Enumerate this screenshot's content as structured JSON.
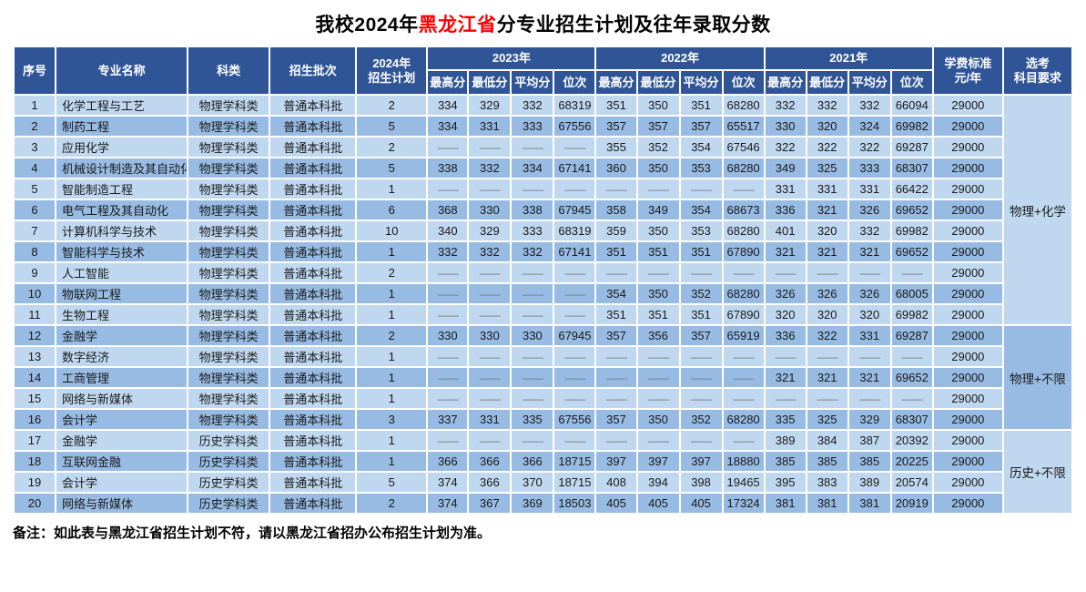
{
  "title": {
    "prefix": "我校2024年",
    "region": "黑龙江省",
    "suffix": "分专业招生计划及往年录取分数"
  },
  "note": "备注：如此表与黑龙江省招生计划不符，请以黑龙江省招办公布招生计划为准。",
  "colors": {
    "header_bg": "#2F5597",
    "row_light": "#BFD7EF",
    "row_dark": "#97BBE3",
    "title_highlight": "#ff0000",
    "dash_gray": "#767676"
  },
  "table": {
    "dash": "——",
    "headers": {
      "index": "序号",
      "major": "专业名称",
      "category": "科类",
      "batch": "招生批次",
      "plan2024": "2024年\n招生计划",
      "years": [
        "2023年",
        "2022年",
        "2021年"
      ],
      "subheaders": [
        "最高分",
        "最低分",
        "平均分",
        "位次"
      ],
      "tuition": "学费标准\n元/年",
      "subjects": "选考\n科目要求"
    },
    "subject_groups": [
      {
        "label": "物理+化学",
        "span": 11,
        "tone": "light"
      },
      {
        "label": "物理+不限",
        "span": 5,
        "tone": "dark"
      },
      {
        "label": "历史+不限",
        "span": 4,
        "tone": "light"
      }
    ],
    "rows": [
      {
        "no": "1",
        "major": "化学工程与工艺",
        "category": "物理学科类",
        "batch": "普通本科批",
        "plan": "2",
        "y2023": [
          "334",
          "329",
          "332",
          "68319"
        ],
        "y2022": [
          "351",
          "350",
          "351",
          "68280"
        ],
        "y2021": [
          "332",
          "332",
          "332",
          "66094"
        ],
        "tuition": "29000"
      },
      {
        "no": "2",
        "major": "制药工程",
        "category": "物理学科类",
        "batch": "普通本科批",
        "plan": "5",
        "y2023": [
          "334",
          "331",
          "333",
          "67556"
        ],
        "y2022": [
          "357",
          "357",
          "357",
          "65517"
        ],
        "y2021": [
          "330",
          "320",
          "324",
          "69982"
        ],
        "tuition": "29000"
      },
      {
        "no": "3",
        "major": "应用化学",
        "category": "物理学科类",
        "batch": "普通本科批",
        "plan": "2",
        "y2023": [
          "——",
          "——",
          "——",
          "——"
        ],
        "y2022": [
          "355",
          "352",
          "354",
          "67546"
        ],
        "y2021": [
          "322",
          "322",
          "322",
          "69287"
        ],
        "tuition": "29000"
      },
      {
        "no": "4",
        "major": "机械设计制造及其自动化",
        "category": "物理学科类",
        "batch": "普通本科批",
        "plan": "5",
        "y2023": [
          "338",
          "332",
          "334",
          "67141"
        ],
        "y2022": [
          "360",
          "350",
          "353",
          "68280"
        ],
        "y2021": [
          "349",
          "325",
          "333",
          "68307"
        ],
        "tuition": "29000"
      },
      {
        "no": "5",
        "major": "智能制造工程",
        "category": "物理学科类",
        "batch": "普通本科批",
        "plan": "1",
        "y2023": [
          "——",
          "——",
          "——",
          "——"
        ],
        "y2022": [
          "——",
          "——",
          "——",
          "——"
        ],
        "y2021": [
          "331",
          "331",
          "331",
          "66422"
        ],
        "tuition": "29000"
      },
      {
        "no": "6",
        "major": "电气工程及其自动化",
        "category": "物理学科类",
        "batch": "普通本科批",
        "plan": "6",
        "y2023": [
          "368",
          "330",
          "338",
          "67945"
        ],
        "y2022": [
          "358",
          "349",
          "354",
          "68673"
        ],
        "y2021": [
          "336",
          "321",
          "326",
          "69652"
        ],
        "tuition": "29000"
      },
      {
        "no": "7",
        "major": "计算机科学与技术",
        "category": "物理学科类",
        "batch": "普通本科批",
        "plan": "10",
        "y2023": [
          "340",
          "329",
          "333",
          "68319"
        ],
        "y2022": [
          "359",
          "350",
          "353",
          "68280"
        ],
        "y2021": [
          "401",
          "320",
          "332",
          "69982"
        ],
        "tuition": "29000"
      },
      {
        "no": "8",
        "major": "智能科学与技术",
        "category": "物理学科类",
        "batch": "普通本科批",
        "plan": "1",
        "y2023": [
          "332",
          "332",
          "332",
          "67141"
        ],
        "y2022": [
          "351",
          "351",
          "351",
          "67890"
        ],
        "y2021": [
          "321",
          "321",
          "321",
          "69652"
        ],
        "tuition": "29000"
      },
      {
        "no": "9",
        "major": "人工智能",
        "category": "物理学科类",
        "batch": "普通本科批",
        "plan": "2",
        "y2023": [
          "——",
          "——",
          "——",
          "——"
        ],
        "y2022": [
          "——",
          "——",
          "——",
          "——"
        ],
        "y2021": [
          "——",
          "——",
          "——",
          "——"
        ],
        "tuition": "29000"
      },
      {
        "no": "10",
        "major": "物联网工程",
        "category": "物理学科类",
        "batch": "普通本科批",
        "plan": "1",
        "y2023": [
          "——",
          "——",
          "——",
          "——"
        ],
        "y2022": [
          "354",
          "350",
          "352",
          "68280"
        ],
        "y2021": [
          "326",
          "326",
          "326",
          "68005"
        ],
        "tuition": "29000"
      },
      {
        "no": "11",
        "major": "生物工程",
        "category": "物理学科类",
        "batch": "普通本科批",
        "plan": "1",
        "y2023": [
          "——",
          "——",
          "——",
          "——"
        ],
        "y2022": [
          "351",
          "351",
          "351",
          "67890"
        ],
        "y2021": [
          "320",
          "320",
          "320",
          "69982"
        ],
        "tuition": "29000"
      },
      {
        "no": "12",
        "major": "金融学",
        "category": "物理学科类",
        "batch": "普通本科批",
        "plan": "2",
        "y2023": [
          "330",
          "330",
          "330",
          "67945"
        ],
        "y2022": [
          "357",
          "356",
          "357",
          "65919"
        ],
        "y2021": [
          "336",
          "322",
          "331",
          "69287"
        ],
        "tuition": "29000"
      },
      {
        "no": "13",
        "major": "数字经济",
        "category": "物理学科类",
        "batch": "普通本科批",
        "plan": "1",
        "y2023": [
          "——",
          "——",
          "——",
          "——"
        ],
        "y2022": [
          "——",
          "——",
          "——",
          "——"
        ],
        "y2021": [
          "——",
          "——",
          "——",
          "——"
        ],
        "tuition": "29000"
      },
      {
        "no": "14",
        "major": "工商管理",
        "category": "物理学科类",
        "batch": "普通本科批",
        "plan": "1",
        "y2023": [
          "——",
          "——",
          "——",
          "——"
        ],
        "y2022": [
          "——",
          "——",
          "——",
          "——"
        ],
        "y2021": [
          "321",
          "321",
          "321",
          "69652"
        ],
        "tuition": "29000"
      },
      {
        "no": "15",
        "major": "网络与新媒体",
        "category": "物理学科类",
        "batch": "普通本科批",
        "plan": "1",
        "y2023": [
          "——",
          "——",
          "——",
          "——"
        ],
        "y2022": [
          "——",
          "——",
          "——",
          "——"
        ],
        "y2021": [
          "——",
          "——",
          "——",
          "——"
        ],
        "tuition": "29000"
      },
      {
        "no": "16",
        "major": "会计学",
        "category": "物理学科类",
        "batch": "普通本科批",
        "plan": "3",
        "y2023": [
          "337",
          "331",
          "335",
          "67556"
        ],
        "y2022": [
          "357",
          "350",
          "352",
          "68280"
        ],
        "y2021": [
          "335",
          "325",
          "329",
          "68307"
        ],
        "tuition": "29000"
      },
      {
        "no": "17",
        "major": "金融学",
        "category": "历史学科类",
        "batch": "普通本科批",
        "plan": "1",
        "y2023": [
          "——",
          "——",
          "——",
          "——"
        ],
        "y2022": [
          "——",
          "——",
          "——",
          "——"
        ],
        "y2021": [
          "389",
          "384",
          "387",
          "20392"
        ],
        "tuition": "29000"
      },
      {
        "no": "18",
        "major": "互联网金融",
        "category": "历史学科类",
        "batch": "普通本科批",
        "plan": "1",
        "y2023": [
          "366",
          "366",
          "366",
          "18715"
        ],
        "y2022": [
          "397",
          "397",
          "397",
          "18880"
        ],
        "y2021": [
          "385",
          "385",
          "385",
          "20225"
        ],
        "tuition": "29000"
      },
      {
        "no": "19",
        "major": "会计学",
        "category": "历史学科类",
        "batch": "普通本科批",
        "plan": "5",
        "y2023": [
          "374",
          "366",
          "370",
          "18715"
        ],
        "y2022": [
          "408",
          "394",
          "398",
          "19465"
        ],
        "y2021": [
          "395",
          "383",
          "389",
          "20574"
        ],
        "tuition": "29000"
      },
      {
        "no": "20",
        "major": "网络与新媒体",
        "category": "历史学科类",
        "batch": "普通本科批",
        "plan": "2",
        "y2023": [
          "374",
          "367",
          "369",
          "18503"
        ],
        "y2022": [
          "405",
          "405",
          "405",
          "17324"
        ],
        "y2021": [
          "381",
          "381",
          "381",
          "20919"
        ],
        "tuition": "29000"
      }
    ]
  }
}
